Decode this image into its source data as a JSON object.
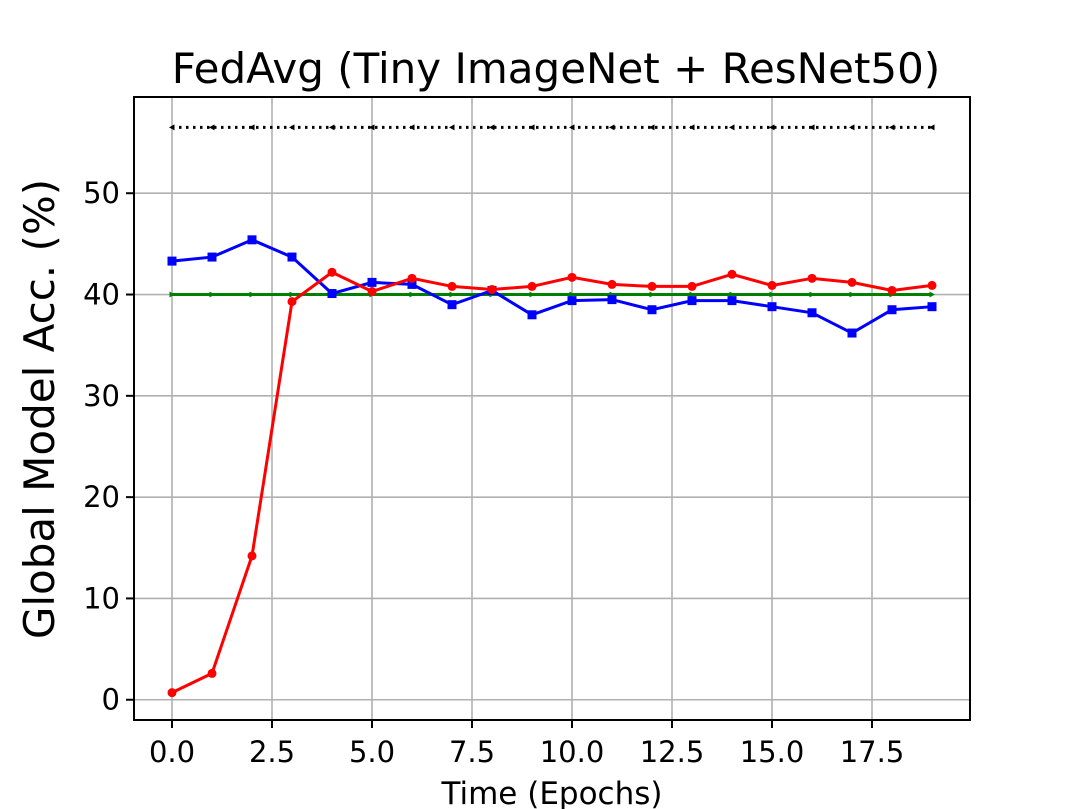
{
  "chart_data": {
    "type": "line",
    "title": "FedAvg (Tiny ImageNet + ResNet50)",
    "xlabel": "Time (Epochs)",
    "ylabel": "Global Model Acc. (%)",
    "xlim": [
      -0.95,
      19.95
    ],
    "ylim": [
      -2,
      59.5
    ],
    "xticks": [
      0.0,
      2.5,
      5.0,
      7.5,
      10.0,
      12.5,
      15.0,
      17.5
    ],
    "xtick_labels": [
      "0.0",
      "2.5",
      "5.0",
      "7.5",
      "10.0",
      "12.5",
      "15.0",
      "17.5"
    ],
    "yticks": [
      0,
      10,
      20,
      30,
      40,
      50
    ],
    "ytick_labels": [
      "0",
      "10",
      "20",
      "30",
      "40",
      "50"
    ],
    "grid": true,
    "x": [
      0,
      1,
      2,
      3,
      4,
      5,
      6,
      7,
      8,
      9,
      10,
      11,
      12,
      13,
      14,
      15,
      16,
      17,
      18,
      19
    ],
    "series": [
      {
        "color": "#000000",
        "marker": "triangle-left",
        "linestyle": "dotted",
        "values": [
          56.5,
          56.5,
          56.5,
          56.5,
          56.5,
          56.5,
          56.5,
          56.5,
          56.5,
          56.5,
          56.5,
          56.5,
          56.5,
          56.5,
          56.5,
          56.5,
          56.5,
          56.5,
          56.5,
          56.5
        ]
      },
      {
        "color": "#008000",
        "marker": "triangle-right",
        "linestyle": "solid",
        "values": [
          40.0,
          40.0,
          40.0,
          40.0,
          40.0,
          40.0,
          40.0,
          40.0,
          40.0,
          40.0,
          40.0,
          40.0,
          40.0,
          40.0,
          40.0,
          40.0,
          40.0,
          40.0,
          40.0,
          40.0
        ]
      },
      {
        "color": "#0000ff",
        "marker": "square",
        "linestyle": "solid",
        "values": [
          43.3,
          43.7,
          45.4,
          43.7,
          40.1,
          41.2,
          41.0,
          39.0,
          40.4,
          38.0,
          39.4,
          39.5,
          38.5,
          39.4,
          39.4,
          38.8,
          38.2,
          36.2,
          38.5,
          38.8
        ]
      },
      {
        "color": "#ff0000",
        "marker": "circle",
        "linestyle": "solid",
        "values": [
          0.7,
          2.6,
          14.2,
          39.3,
          42.2,
          40.3,
          41.6,
          40.8,
          40.5,
          40.8,
          41.7,
          41.0,
          40.8,
          40.8,
          42.0,
          40.9,
          41.6,
          41.2,
          40.4,
          40.9
        ]
      }
    ]
  }
}
